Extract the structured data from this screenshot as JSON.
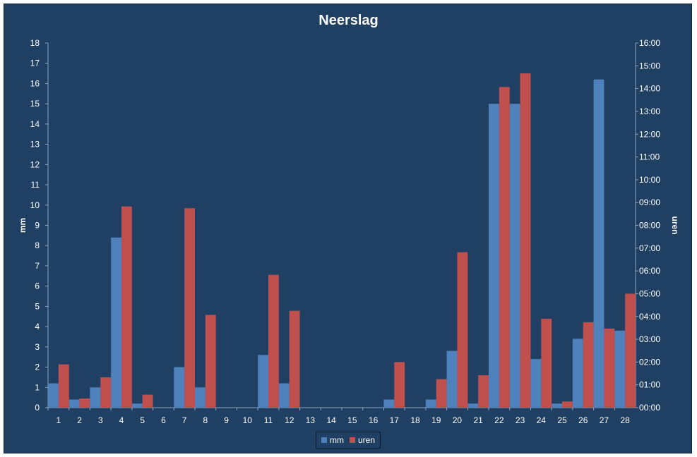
{
  "chart_data": {
    "type": "bar",
    "title": "Neerslag",
    "ylabel": "mm",
    "y2label": "uren",
    "ylim": [
      0,
      18
    ],
    "y2lim": [
      0,
      16
    ],
    "yticks": [
      "0",
      "1",
      "2",
      "3",
      "4",
      "5",
      "6",
      "7",
      "8",
      "9",
      "10",
      "11",
      "12",
      "13",
      "14",
      "15",
      "16",
      "17",
      "18"
    ],
    "y2ticks": [
      "00:00",
      "01:00",
      "02:00",
      "03:00",
      "04:00",
      "05:00",
      "06:00",
      "07:00",
      "08:00",
      "09:00",
      "10:00",
      "11:00",
      "12:00",
      "13:00",
      "14:00",
      "15:00",
      "16:00"
    ],
    "categories": [
      "1",
      "2",
      "3",
      "4",
      "5",
      "6",
      "7",
      "8",
      "9",
      "10",
      "11",
      "12",
      "13",
      "14",
      "15",
      "16",
      "17",
      "18",
      "19",
      "20",
      "21",
      "22",
      "23",
      "24",
      "25",
      "26",
      "27",
      "28"
    ],
    "series": [
      {
        "name": "mm",
        "color": "#4f81bd",
        "axis": "left",
        "values": [
          1.2,
          0.4,
          1.0,
          8.4,
          0.2,
          0,
          2.0,
          1.0,
          0,
          0,
          2.6,
          1.2,
          0,
          0,
          0,
          0,
          0.4,
          0,
          0.4,
          2.8,
          0.2,
          15.0,
          15.0,
          2.4,
          0.2,
          3.4,
          16.2,
          3.8
        ]
      },
      {
        "name": "uren",
        "color": "#c0504d",
        "axis": "right",
        "values": [
          1.9,
          0.4,
          1.33,
          8.83,
          0.57,
          0,
          8.75,
          4.07,
          0,
          0,
          5.83,
          4.25,
          0,
          0,
          0,
          0,
          2.0,
          0,
          1.25,
          6.82,
          1.42,
          14.07,
          14.67,
          3.9,
          0.27,
          3.75,
          3.47,
          5.0
        ]
      }
    ],
    "legend": "bottom",
    "grid": false
  }
}
